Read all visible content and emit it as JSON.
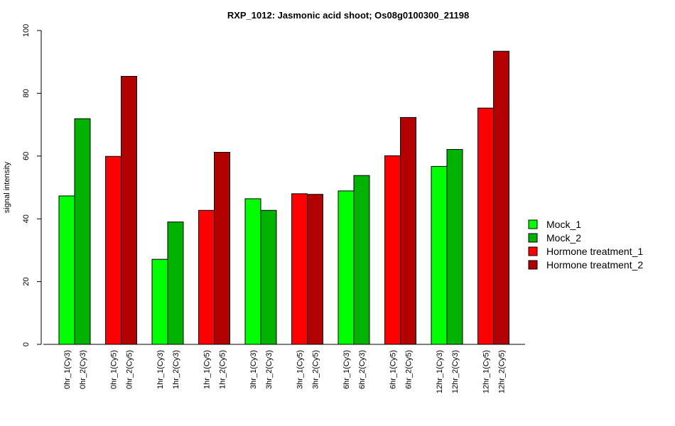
{
  "chart_data": {
    "type": "bar",
    "title": "RXP_1012: Jasmonic acid shoot; Os08g0100300_21198",
    "xlabel": "",
    "ylabel": "signal intensity",
    "ylim": [
      0,
      100
    ],
    "yticks": [
      0,
      20,
      40,
      60,
      80,
      100
    ],
    "groups": [
      {
        "bars": [
          {
            "label": "0hr_1(Cy3)",
            "value": 47.3,
            "series": 0
          },
          {
            "label": "0hr_2(Cy3)",
            "value": 71.9,
            "series": 1
          }
        ]
      },
      {
        "bars": [
          {
            "label": "0hr_1(Cy5)",
            "value": 59.9,
            "series": 2
          },
          {
            "label": "0hr_2(Cy5)",
            "value": 85.4,
            "series": 3
          }
        ]
      },
      {
        "bars": [
          {
            "label": "1hr_1(Cy3)",
            "value": 27.1,
            "series": 0
          },
          {
            "label": "1hr_2(Cy3)",
            "value": 39.0,
            "series": 1
          }
        ]
      },
      {
        "bars": [
          {
            "label": "1hr_1(Cy5)",
            "value": 42.7,
            "series": 2
          },
          {
            "label": "1hr_2(Cy5)",
            "value": 61.2,
            "series": 3
          }
        ]
      },
      {
        "bars": [
          {
            "label": "3hr_1(Cy3)",
            "value": 46.4,
            "series": 0
          },
          {
            "label": "3hr_2(Cy3)",
            "value": 42.7,
            "series": 1
          }
        ]
      },
      {
        "bars": [
          {
            "label": "3hr_1(Cy5)",
            "value": 48.0,
            "series": 2
          },
          {
            "label": "3hr_2(Cy5)",
            "value": 47.8,
            "series": 3
          }
        ]
      },
      {
        "bars": [
          {
            "label": "6hr_1(Cy3)",
            "value": 48.9,
            "series": 0
          },
          {
            "label": "6hr_2(Cy3)",
            "value": 53.8,
            "series": 1
          }
        ]
      },
      {
        "bars": [
          {
            "label": "6hr_1(Cy5)",
            "value": 60.1,
            "series": 2
          },
          {
            "label": "6hr_2(Cy5)",
            "value": 72.3,
            "series": 3
          }
        ]
      },
      {
        "bars": [
          {
            "label": "12hr_1(Cy3)",
            "value": 56.7,
            "series": 0
          },
          {
            "label": "12hr_2(Cy3)",
            "value": 62.1,
            "series": 1
          }
        ]
      },
      {
        "bars": [
          {
            "label": "12hr_1(Cy5)",
            "value": 75.3,
            "series": 2
          },
          {
            "label": "12hr_2(Cy5)",
            "value": 93.4,
            "series": 3
          }
        ]
      }
    ],
    "series": [
      {
        "name": "Mock_1",
        "color": "#00ff00"
      },
      {
        "name": "Mock_2",
        "color": "#00b300"
      },
      {
        "name": "Hormone treatment_1",
        "color": "#ff0000"
      },
      {
        "name": "Hormone treatment_2",
        "color": "#b30000"
      }
    ],
    "legend_position": "right"
  }
}
